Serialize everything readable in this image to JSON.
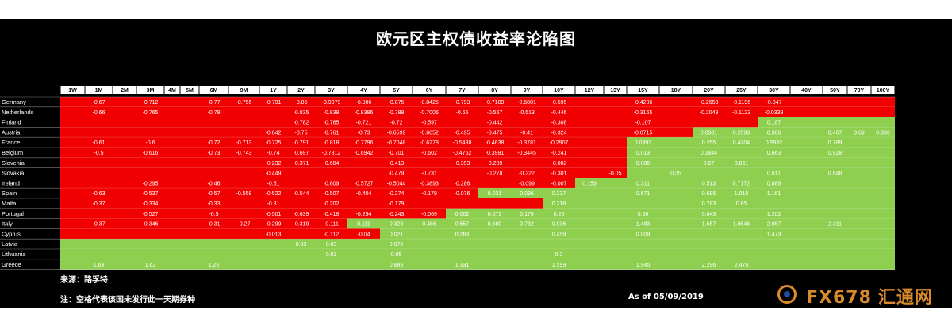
{
  "colors": {
    "negative": "#f00000",
    "positive": "#8fcf4f",
    "background": "#000000",
    "header": "#ffffff"
  },
  "watermark": {
    "brand": "FX678",
    "cn": "汇通网",
    "icon": "fx678-logo-icon"
  },
  "footer": {
    "source": "来源：路孚特",
    "note": "注：空格代表该国未发行此一天期券种",
    "as_of": "As of 05/09/2019"
  },
  "chart_data": {
    "type": "heatmap",
    "title": "欧元区主权债收益率沦陷图",
    "columns": [
      "1W",
      "1M",
      "2M",
      "3M",
      "4M",
      "5M",
      "6M",
      "9M",
      "1Y",
      "2Y",
      "3Y",
      "4Y",
      "5Y",
      "6Y",
      "7Y",
      "8Y",
      "9Y",
      "10Y",
      "12Y",
      "13Y",
      "15Y",
      "18Y",
      "20Y",
      "25Y",
      "30Y",
      "40Y",
      "50Y",
      "70Y",
      "100Y"
    ],
    "rows": [
      {
        "name": "Germany",
        "values": [
          "",
          "-0.67",
          "",
          "-0.712",
          "",
          "",
          "-0.77",
          "-0.755",
          "-0.791",
          "-0.86",
          "-0.9079",
          "-0.906",
          "-0.875",
          "-0.8425",
          "-0.793",
          "-0.7189",
          "-0.6801",
          "-0.595",
          "",
          "",
          "-0.4286",
          "",
          "-0.2653",
          "-0.1196",
          "-0.047",
          "",
          "",
          "",
          ""
        ],
        "colors": [
          "N",
          "N",
          "N",
          "N",
          "N",
          "N",
          "N",
          "N",
          "N",
          "N",
          "N",
          "N",
          "N",
          "N",
          "N",
          "N",
          "N",
          "N",
          "N",
          "N",
          "N",
          "N",
          "N",
          "N",
          "N",
          "N",
          "N",
          "N",
          "N"
        ]
      },
      {
        "name": "Netherlands",
        "values": [
          "",
          "-0.66",
          "",
          "-0.765",
          "",
          "",
          "-0.79",
          "",
          "",
          "-0.835",
          "-0.839",
          "-0.8386",
          "-0.789",
          "-0.7006",
          "-0.65",
          "-0.567",
          "-0.513",
          "-0.446",
          "",
          "",
          "-0.3165",
          "",
          "-0.2049",
          "-0.1123",
          "-0.0339",
          "",
          "",
          "",
          ""
        ],
        "colors": [
          "N",
          "N",
          "N",
          "N",
          "N",
          "N",
          "N",
          "N",
          "N",
          "N",
          "N",
          "N",
          "N",
          "N",
          "N",
          "N",
          "N",
          "N",
          "N",
          "N",
          "N",
          "N",
          "N",
          "N",
          "N",
          "N",
          "N",
          "N",
          "N"
        ]
      },
      {
        "name": "Finland",
        "values": [
          "",
          "",
          "",
          "",
          "",
          "",
          "",
          "",
          "",
          "-0.782",
          "-0.765",
          "-0.721",
          "-0.72",
          "-0.597",
          "",
          "-0.442",
          "",
          "-0.308",
          "",
          "",
          "-0.107",
          "",
          "",
          "",
          "0.187",
          "",
          "",
          "",
          ""
        ],
        "colors": [
          "N",
          "N",
          "N",
          "N",
          "N",
          "N",
          "N",
          "N",
          "N",
          "N",
          "N",
          "N",
          "N",
          "N",
          "N",
          "N",
          "N",
          "N",
          "N",
          "N",
          "N",
          "N",
          "N",
          "N",
          "P",
          "P",
          "P",
          "P",
          "P"
        ]
      },
      {
        "name": "Austria",
        "values": [
          "",
          "",
          "",
          "",
          "",
          "",
          "",
          "",
          "-0.642",
          "-0.75",
          "-0.761",
          "-0.73",
          "-0.6599",
          "-0.6052",
          "-0.495",
          "-0.475",
          "-0.41",
          "-0.324",
          "",
          "",
          "-0.0715",
          "",
          "0.0381",
          "0.2098",
          "0.306",
          "",
          "0.467",
          "0.69",
          "0.839"
        ],
        "colors": [
          "N",
          "N",
          "N",
          "N",
          "N",
          "N",
          "N",
          "N",
          "N",
          "N",
          "N",
          "N",
          "N",
          "N",
          "N",
          "N",
          "N",
          "N",
          "N",
          "N",
          "N",
          "N",
          "P",
          "P",
          "P",
          "P",
          "P",
          "P",
          "P"
        ]
      },
      {
        "name": "France",
        "values": [
          "",
          "-0.61",
          "",
          "-0.6",
          "",
          "",
          "-0.72",
          "-0.713",
          "-0.725",
          "-0.791",
          "-0.818",
          "-0.7796",
          "-0.7048",
          "-0.6278",
          "-0.5438",
          "-0.4638",
          "-0.3781",
          "-0.2907",
          "",
          "",
          "0.0393",
          "",
          "0.255",
          "0.4204",
          "0.5932",
          "",
          "0.789",
          "",
          ""
        ],
        "colors": [
          "N",
          "N",
          "N",
          "N",
          "N",
          "N",
          "N",
          "N",
          "N",
          "N",
          "N",
          "N",
          "N",
          "N",
          "N",
          "N",
          "N",
          "N",
          "N",
          "N",
          "P",
          "P",
          "P",
          "P",
          "P",
          "P",
          "P",
          "P",
          "P"
        ]
      },
      {
        "name": "Belgium",
        "values": [
          "",
          "-0.5",
          "",
          "-0.616",
          "",
          "",
          "-0.73",
          "-0.743",
          "-0.74",
          "-0.697",
          "-0.7812",
          "-0.6942",
          "-0.701",
          "-0.602",
          "-0.4752",
          "-0.3981",
          "-0.3445",
          "-0.241",
          "",
          "",
          "0.013",
          "",
          "0.2844",
          "",
          "0.663",
          "",
          "0.928",
          "",
          ""
        ],
        "colors": [
          "N",
          "N",
          "N",
          "N",
          "N",
          "N",
          "N",
          "N",
          "N",
          "N",
          "N",
          "N",
          "N",
          "N",
          "N",
          "N",
          "N",
          "N",
          "N",
          "N",
          "P",
          "P",
          "P",
          "P",
          "P",
          "P",
          "P",
          "P",
          "P"
        ]
      },
      {
        "name": "Slovenia",
        "values": [
          "",
          "",
          "",
          "",
          "",
          "",
          "",
          "",
          "-0.232",
          "-0.371",
          "-0.604",
          "",
          "-0.413",
          "",
          "-0.393",
          "-0.289",
          "",
          "-0.082",
          "",
          "",
          "0.086",
          "",
          "0.57",
          "0.861",
          "",
          "",
          "",
          "",
          ""
        ],
        "colors": [
          "N",
          "N",
          "N",
          "N",
          "N",
          "N",
          "N",
          "N",
          "N",
          "N",
          "N",
          "N",
          "N",
          "N",
          "N",
          "N",
          "N",
          "N",
          "N",
          "N",
          "P",
          "P",
          "P",
          "P",
          "P",
          "P",
          "P",
          "P",
          "P"
        ]
      },
      {
        "name": "Slovakia",
        "values": [
          "",
          "",
          "",
          "",
          "",
          "",
          "",
          "",
          "-0.449",
          "",
          "",
          "",
          "-0.479",
          "-0.731",
          "",
          "-0.278",
          "-0.222",
          "-0.301",
          "",
          "-0.05",
          "",
          "0.35",
          "",
          "",
          "0.611",
          "",
          "0.848",
          "",
          ""
        ],
        "colors": [
          "N",
          "N",
          "N",
          "N",
          "N",
          "N",
          "N",
          "N",
          "N",
          "N",
          "N",
          "N",
          "N",
          "N",
          "N",
          "N",
          "N",
          "N",
          "N",
          "N",
          "P",
          "P",
          "P",
          "P",
          "P",
          "P",
          "P",
          "P",
          "P"
        ]
      },
      {
        "name": "Ireland",
        "values": [
          "",
          "",
          "",
          "-0.295",
          "",
          "",
          "-0.46",
          "",
          "-0.51",
          "",
          "-0.609",
          "-0.5727",
          "-0.5044",
          "-0.3893",
          "-0.286",
          "",
          "-0.099",
          "-0.007",
          "0.159",
          "",
          "0.311",
          "",
          "0.513",
          "0.7172",
          "0.888",
          "",
          "",
          "",
          ""
        ],
        "colors": [
          "N",
          "N",
          "N",
          "N",
          "N",
          "N",
          "N",
          "N",
          "N",
          "N",
          "N",
          "N",
          "N",
          "N",
          "N",
          "N",
          "N",
          "N",
          "P",
          "P",
          "P",
          "P",
          "P",
          "P",
          "P",
          "P",
          "P",
          "P",
          "P"
        ]
      },
      {
        "name": "Spain",
        "values": [
          "",
          "-0.63",
          "",
          "-0.537",
          "",
          "",
          "-0.57",
          "-0.558",
          "-0.522",
          "-0.544",
          "-0.507",
          "-0.404",
          "-0.274",
          "-0.179",
          "-0.076",
          "0.021",
          "0.096",
          "0.237",
          "",
          "",
          "0.671",
          "",
          "0.685",
          "1.015",
          "1.161",
          "",
          "",
          "",
          ""
        ],
        "colors": [
          "N",
          "N",
          "N",
          "N",
          "N",
          "N",
          "N",
          "N",
          "N",
          "N",
          "N",
          "N",
          "N",
          "N",
          "N",
          "P",
          "P",
          "P",
          "P",
          "P",
          "P",
          "P",
          "P",
          "P",
          "P",
          "P",
          "P",
          "P",
          "P"
        ]
      },
      {
        "name": "Malta",
        "values": [
          "",
          "-0.37",
          "",
          "-0.334",
          "",
          "",
          "-0.33",
          "",
          "-0.31",
          "",
          "-0.202",
          "",
          "-0.179",
          "",
          "",
          "",
          "",
          "0.218",
          "",
          "",
          "",
          "",
          "0.783",
          "0.85",
          "",
          "",
          "",
          "",
          ""
        ],
        "colors": [
          "N",
          "N",
          "N",
          "N",
          "N",
          "N",
          "N",
          "N",
          "N",
          "N",
          "N",
          "N",
          "N",
          "N",
          "N",
          "N",
          "N",
          "P",
          "P",
          "P",
          "P",
          "P",
          "P",
          "P",
          "P",
          "P",
          "P",
          "P",
          "P"
        ]
      },
      {
        "name": "Portugal",
        "values": [
          "",
          "",
          "",
          "-0.527",
          "",
          "",
          "-0.5",
          "",
          "-0.501",
          "-0.639",
          "-0.418",
          "-0.294",
          "-0.243",
          "-0.069",
          "0.002",
          "0.072",
          "0.179",
          "0.26",
          "",
          "",
          "0.66",
          "",
          "0.843",
          "",
          "1.202",
          "",
          "",
          "",
          ""
        ],
        "colors": [
          "N",
          "N",
          "N",
          "N",
          "N",
          "N",
          "N",
          "N",
          "N",
          "N",
          "N",
          "N",
          "N",
          "N",
          "P",
          "P",
          "P",
          "P",
          "P",
          "P",
          "P",
          "P",
          "P",
          "P",
          "P",
          "P",
          "P",
          "P",
          "P"
        ]
      },
      {
        "name": "Italy",
        "values": [
          "",
          "-0.37",
          "",
          "-0.346",
          "",
          "",
          "-0.31",
          "-0.27",
          "-0.299",
          "-0.319",
          "-0.111",
          "0.111",
          "0.329",
          "0.456",
          "0.557",
          "0.689",
          "0.732",
          "0.936",
          "",
          "",
          "1.483",
          "",
          "1.657",
          "1.9546",
          "2.057",
          "",
          "2.311",
          "",
          ""
        ],
        "colors": [
          "N",
          "N",
          "N",
          "N",
          "N",
          "N",
          "N",
          "N",
          "N",
          "N",
          "N",
          "P",
          "P",
          "P",
          "P",
          "P",
          "P",
          "P",
          "P",
          "P",
          "P",
          "P",
          "P",
          "P",
          "P",
          "P",
          "P",
          "P",
          "P"
        ]
      },
      {
        "name": "Cyprus",
        "values": [
          "",
          "",
          "",
          "",
          "",
          "",
          "",
          "",
          "-0.013",
          "",
          "-0.112",
          "-0.04",
          "0.021",
          "",
          "0.263",
          "",
          "",
          "0.459",
          "",
          "",
          "0.909",
          "",
          "",
          "",
          "1.473",
          "",
          "",
          "",
          ""
        ],
        "colors": [
          "N",
          "N",
          "N",
          "N",
          "N",
          "N",
          "N",
          "N",
          "N",
          "N",
          "N",
          "N",
          "P",
          "P",
          "P",
          "P",
          "P",
          "P",
          "P",
          "P",
          "P",
          "P",
          "P",
          "P",
          "P",
          "P",
          "P",
          "P",
          "P"
        ]
      },
      {
        "name": "Latvia",
        "values": [
          "",
          "",
          "",
          "",
          "",
          "",
          "",
          "",
          "",
          "0.03",
          "0.03",
          "",
          "0.075",
          "",
          "",
          "",
          "",
          "",
          "",
          "",
          "",
          "",
          "",
          "",
          "",
          "",
          "",
          "",
          ""
        ],
        "colors": [
          "P",
          "P",
          "P",
          "P",
          "P",
          "P",
          "P",
          "P",
          "P",
          "P",
          "P",
          "P",
          "P",
          "P",
          "P",
          "P",
          "P",
          "P",
          "P",
          "P",
          "P",
          "P",
          "P",
          "P",
          "P",
          "P",
          "P",
          "P",
          "P"
        ]
      },
      {
        "name": "Lithuania",
        "values": [
          "",
          "",
          "",
          "",
          "",
          "",
          "",
          "",
          "",
          "",
          "0.03",
          "",
          "0.05",
          "",
          "",
          "",
          "",
          "0.2",
          "",
          "",
          "",
          "",
          "",
          "",
          "",
          "",
          "",
          "",
          ""
        ],
        "colors": [
          "P",
          "P",
          "P",
          "P",
          "P",
          "P",
          "P",
          "P",
          "P",
          "P",
          "P",
          "P",
          "P",
          "P",
          "P",
          "P",
          "P",
          "P",
          "P",
          "P",
          "P",
          "P",
          "P",
          "P",
          "P",
          "P",
          "P",
          "P",
          "P"
        ]
      },
      {
        "name": "Greece",
        "values": [
          "",
          "1.69",
          "",
          "1.62",
          "",
          "",
          "1.26",
          "",
          "",
          "",
          "",
          "",
          "0.895",
          "",
          "1.331",
          "",
          "",
          "1.599",
          "",
          "",
          "1.945",
          "",
          "2.296",
          "2.475",
          "",
          "",
          "",
          "",
          ""
        ],
        "colors": [
          "P",
          "P",
          "P",
          "P",
          "P",
          "P",
          "P",
          "P",
          "P",
          "P",
          "P",
          "P",
          "P",
          "P",
          "P",
          "P",
          "P",
          "P",
          "P",
          "P",
          "P",
          "P",
          "P",
          "P",
          "P",
          "P",
          "P",
          "P",
          "P"
        ]
      }
    ]
  }
}
